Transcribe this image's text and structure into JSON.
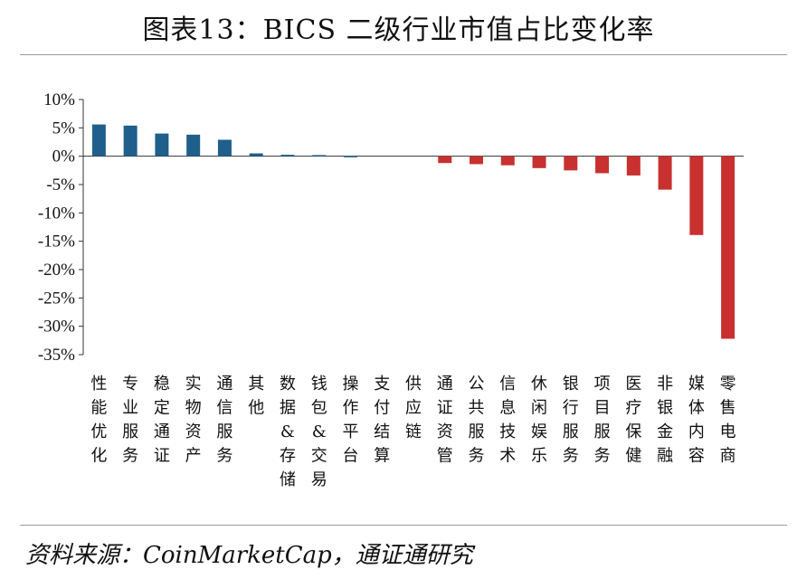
{
  "page": {
    "title": "图表13：BICS 二级行业市值占比变化率",
    "source": "资料来源：CoinMarketCap，通证通研究"
  },
  "chart_data": {
    "type": "bar",
    "title": "图表13：BICS 二级行业市值占比变化率",
    "xlabel": "",
    "ylabel": "",
    "ylim": [
      -35,
      10
    ],
    "yticks": [
      10,
      5,
      0,
      -5,
      -10,
      -15,
      -20,
      -25,
      -30,
      -35
    ],
    "ytick_labels": [
      "10%",
      "5%",
      "0%",
      "-5%",
      "-10%",
      "-15%",
      "-20%",
      "-25%",
      "-30%",
      "-35%"
    ],
    "categories": [
      "性能优化",
      "专业服务",
      "稳定通证",
      "实物资产",
      "通信服务",
      "其他",
      "数据&存储",
      "钱包&交易",
      "操作平台",
      "支付结算",
      "供应链",
      "通证资管",
      "公共服务",
      "信息技术",
      "休闲娱乐",
      "银行服务",
      "项目服务",
      "医疗保健",
      "非银金融",
      "媒体内容",
      "零售电商"
    ],
    "values": [
      5.6,
      5.4,
      4.0,
      3.8,
      2.9,
      0.5,
      0.25,
      0.2,
      0.05,
      0.0,
      0.0,
      -1.2,
      -1.4,
      -1.6,
      -2.1,
      -2.5,
      -3.0,
      -3.4,
      -5.9,
      -13.9,
      -32.2
    ],
    "grid": false,
    "legend": "none",
    "colors": {
      "positive": "#1f5f8b",
      "negative": "#c8312f"
    }
  }
}
